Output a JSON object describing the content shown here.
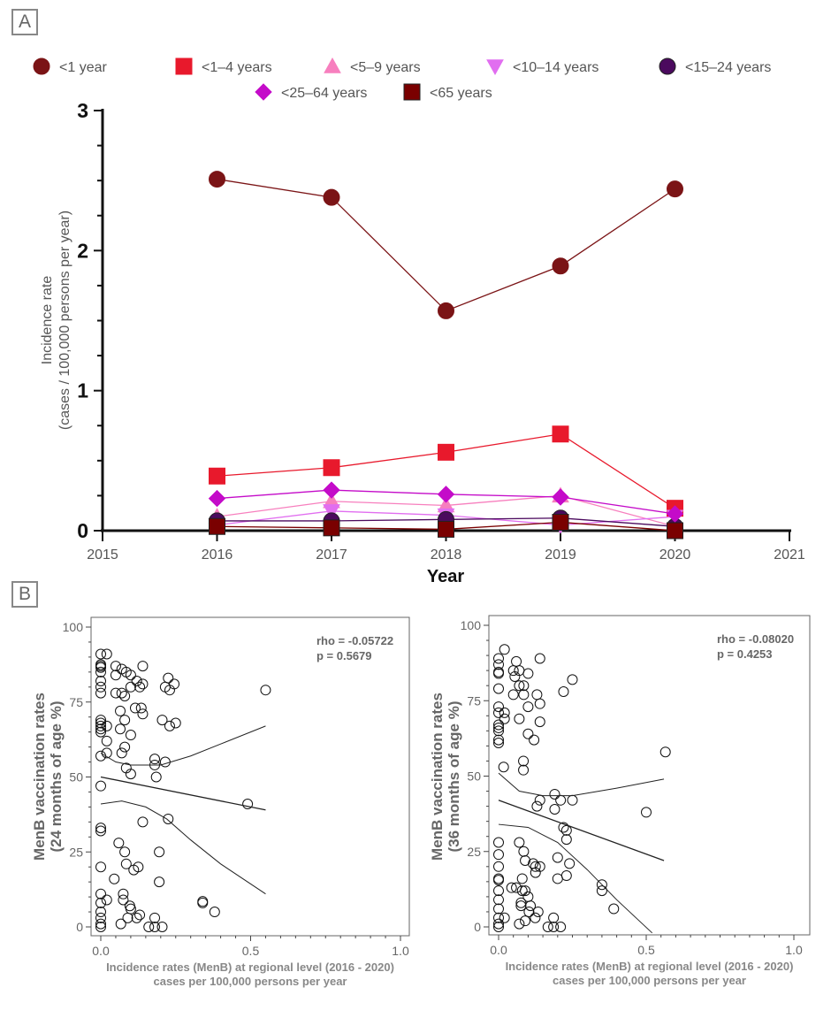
{
  "panels": {
    "a_label": "A",
    "b_label": "B"
  },
  "chart_data": [
    {
      "type": "line",
      "xlabel": "Year",
      "ylabel": [
        "Incidence rate",
        "(cases / 100,000 persons per year)"
      ],
      "xlim": [
        2015,
        2021
      ],
      "ylim": [
        0,
        3
      ],
      "x_ticks": [
        "2015",
        "2016",
        "2017",
        "2018",
        "2019",
        "2020",
        "2021"
      ],
      "y_ticks": [
        "0",
        "1",
        "2",
        "3"
      ],
      "legend_position": "top",
      "x": [
        2016,
        2017,
        2018,
        2019,
        2020
      ],
      "series": [
        {
          "name": "<1 year",
          "marker": "circle",
          "color": "#7b1416",
          "values": [
            2.51,
            2.38,
            1.57,
            1.89,
            2.44
          ]
        },
        {
          "name": "<1–4 years",
          "marker": "square",
          "color": "#e8192c",
          "values": [
            0.39,
            0.45,
            0.56,
            0.69,
            0.16
          ]
        },
        {
          "name": "<5–9 years",
          "marker": "triangle-up",
          "color": "#f77fbe",
          "values": [
            0.1,
            0.21,
            0.18,
            0.25,
            0.03
          ]
        },
        {
          "name": "<10–14 years",
          "marker": "triangle-down",
          "color": "#e16ef0",
          "values": [
            0.04,
            0.14,
            0.11,
            0.04,
            0.1
          ]
        },
        {
          "name": "<15–24 years",
          "marker": "circle",
          "color": "#4b0a5e",
          "values": [
            0.07,
            0.07,
            0.08,
            0.09,
            0.03
          ]
        },
        {
          "name": "<25–64 years",
          "marker": "diamond",
          "color": "#c40bc9",
          "values": [
            0.23,
            0.29,
            0.26,
            0.24,
            0.12
          ]
        },
        {
          "name": "<65 years",
          "marker": "square",
          "color": "#7a0000",
          "values": [
            0.03,
            0.02,
            0.01,
            0.06,
            0.0
          ]
        }
      ]
    },
    {
      "type": "scatter",
      "xlabel": [
        "Incidence rates (MenB) at regional level (2016 - 2020)",
        "cases per 100,000 persons per year"
      ],
      "ylabel": [
        "MenB vaccination rates",
        "(24 months of age %)"
      ],
      "xlim": [
        0,
        1.0
      ],
      "ylim": [
        0,
        100
      ],
      "x_ticks": [
        "0.0",
        "0.5",
        "1.0"
      ],
      "y_ticks": [
        "0",
        "25",
        "50",
        "75",
        "100"
      ],
      "annotation": [
        "rho = -0.05722",
        "p = 0.5679"
      ],
      "points": [
        [
          0,
          91
        ],
        [
          0.02,
          91
        ],
        [
          0,
          87
        ],
        [
          0,
          87.5
        ],
        [
          0,
          86.5
        ],
        [
          0,
          85
        ],
        [
          0,
          82
        ],
        [
          0,
          80
        ],
        [
          0,
          78
        ],
        [
          0.05,
          87
        ],
        [
          0.07,
          86
        ],
        [
          0.05,
          84
        ],
        [
          0.085,
          85
        ],
        [
          0.1,
          84
        ],
        [
          0.14,
          87
        ],
        [
          0.12,
          82
        ],
        [
          0.14,
          81
        ],
        [
          0.13,
          80
        ],
        [
          0.1,
          80
        ],
        [
          0.05,
          78
        ],
        [
          0.07,
          78
        ],
        [
          0.08,
          77
        ],
        [
          0.115,
          73
        ],
        [
          0.135,
          73
        ],
        [
          0.14,
          71
        ],
        [
          0.065,
          72
        ],
        [
          0.08,
          69
        ],
        [
          0.065,
          66
        ],
        [
          0.1,
          64
        ],
        [
          0.08,
          60
        ],
        [
          0.07,
          58
        ],
        [
          0,
          69
        ],
        [
          0,
          68
        ],
        [
          0,
          67
        ],
        [
          0,
          66
        ],
        [
          0,
          65
        ],
        [
          0.02,
          67
        ],
        [
          0.02,
          62
        ],
        [
          0.02,
          58
        ],
        [
          0,
          57
        ],
        [
          0.225,
          83
        ],
        [
          0.215,
          80
        ],
        [
          0.23,
          79
        ],
        [
          0.245,
          81
        ],
        [
          0.205,
          69
        ],
        [
          0.25,
          68
        ],
        [
          0.23,
          67
        ],
        [
          0.085,
          53
        ],
        [
          0.1,
          51
        ],
        [
          0.18,
          56
        ],
        [
          0.18,
          54
        ],
        [
          0.215,
          55
        ],
        [
          0.185,
          50
        ],
        [
          0.55,
          79
        ],
        [
          0.49,
          41
        ],
        [
          0,
          47
        ],
        [
          0,
          32
        ],
        [
          0,
          33
        ],
        [
          0.225,
          36
        ],
        [
          0.14,
          35
        ],
        [
          0.06,
          28
        ],
        [
          0.08,
          25
        ],
        [
          0.085,
          21
        ],
        [
          0.125,
          20
        ],
        [
          0.11,
          19
        ],
        [
          0.195,
          25
        ],
        [
          0.195,
          15
        ],
        [
          0,
          20
        ],
        [
          0.045,
          16
        ],
        [
          0.075,
          11
        ],
        [
          0.075,
          9
        ],
        [
          0.02,
          9
        ],
        [
          0,
          11
        ],
        [
          0,
          8
        ],
        [
          0.097,
          7
        ],
        [
          0.1,
          6
        ],
        [
          0.09,
          3
        ],
        [
          0.12,
          3
        ],
        [
          0.13,
          4
        ],
        [
          0.067,
          1
        ],
        [
          0,
          5
        ],
        [
          0,
          3
        ],
        [
          0,
          1
        ],
        [
          0,
          0
        ],
        [
          0.16,
          0
        ],
        [
          0.18,
          0
        ],
        [
          0.205,
          0
        ],
        [
          0.18,
          3
        ],
        [
          0.34,
          8
        ],
        [
          0.34,
          8.5
        ],
        [
          0.38,
          5
        ]
      ],
      "fit": [
        [
          0,
          50
        ],
        [
          0.55,
          39
        ]
      ],
      "ci_upper": [
        [
          0,
          58
        ],
        [
          0.05,
          55
        ],
        [
          0.1,
          54
        ],
        [
          0.2,
          54
        ],
        [
          0.3,
          57
        ],
        [
          0.4,
          61
        ],
        [
          0.55,
          67
        ]
      ],
      "ci_lower": [
        [
          0,
          41
        ],
        [
          0.07,
          42
        ],
        [
          0.15,
          40
        ],
        [
          0.22,
          36
        ],
        [
          0.3,
          29
        ],
        [
          0.4,
          21
        ],
        [
          0.55,
          11
        ]
      ]
    },
    {
      "type": "scatter",
      "xlabel": [
        "Incidence rates (MenB) at regional level (2016 - 2020)",
        "cases per 100,000 persons per year"
      ],
      "ylabel": [
        "MenB vaccination rates",
        "(36 months of age %)"
      ],
      "xlim": [
        0,
        1.0
      ],
      "ylim": [
        0,
        100
      ],
      "x_ticks": [
        "0.0",
        "0.5",
        "1.0"
      ],
      "y_ticks": [
        "0",
        "25",
        "50",
        "75",
        "100"
      ],
      "annotation": [
        "rho = -0.08020",
        "p = 0.4253"
      ],
      "points": [
        [
          0,
          89
        ],
        [
          0.02,
          92
        ],
        [
          0,
          87
        ],
        [
          0,
          84
        ],
        [
          0,
          84.5
        ],
        [
          0,
          79
        ],
        [
          0,
          73
        ],
        [
          0,
          71
        ],
        [
          0,
          67
        ],
        [
          0,
          66
        ],
        [
          0,
          65
        ],
        [
          0,
          62
        ],
        [
          0,
          61
        ],
        [
          0.02,
          71
        ],
        [
          0.02,
          69
        ],
        [
          0.017,
          53
        ],
        [
          0.06,
          88
        ],
        [
          0.05,
          85
        ],
        [
          0.07,
          85
        ],
        [
          0.055,
          83
        ],
        [
          0.07,
          80
        ],
        [
          0.085,
          80
        ],
        [
          0.05,
          77
        ],
        [
          0.085,
          77
        ],
        [
          0.1,
          84
        ],
        [
          0.14,
          89
        ],
        [
          0.13,
          77
        ],
        [
          0.14,
          74
        ],
        [
          0.1,
          73
        ],
        [
          0.07,
          69
        ],
        [
          0.14,
          68
        ],
        [
          0.1,
          64
        ],
        [
          0.12,
          62
        ],
        [
          0.084,
          55
        ],
        [
          0.084,
          52
        ],
        [
          0.22,
          78
        ],
        [
          0.25,
          82
        ],
        [
          0.565,
          58
        ],
        [
          0.5,
          38
        ],
        [
          0.19,
          44
        ],
        [
          0.21,
          42
        ],
        [
          0.25,
          42
        ],
        [
          0.14,
          42
        ],
        [
          0.13,
          40
        ],
        [
          0.19,
          39
        ],
        [
          0.22,
          33
        ],
        [
          0.23,
          32
        ],
        [
          0.23,
          29
        ],
        [
          0.2,
          23
        ],
        [
          0.24,
          21
        ],
        [
          0.2,
          16
        ],
        [
          0.23,
          17
        ],
        [
          0,
          28
        ],
        [
          0,
          24
        ],
        [
          0,
          20
        ],
        [
          0,
          16
        ],
        [
          0,
          15.5
        ],
        [
          0,
          12
        ],
        [
          0,
          9
        ],
        [
          0,
          6
        ],
        [
          0,
          3
        ],
        [
          0,
          1
        ],
        [
          0,
          0
        ],
        [
          0.02,
          3
        ],
        [
          0.07,
          28
        ],
        [
          0.085,
          25
        ],
        [
          0.09,
          22
        ],
        [
          0.117,
          21
        ],
        [
          0.125,
          20
        ],
        [
          0.14,
          20
        ],
        [
          0.125,
          18
        ],
        [
          0.044,
          13
        ],
        [
          0.06,
          13
        ],
        [
          0.08,
          16
        ],
        [
          0.08,
          12
        ],
        [
          0.09,
          12
        ],
        [
          0.1,
          10
        ],
        [
          0.076,
          8
        ],
        [
          0.076,
          7
        ],
        [
          0.108,
          7
        ],
        [
          0.103,
          5
        ],
        [
          0.134,
          5
        ],
        [
          0.124,
          3
        ],
        [
          0.09,
          2
        ],
        [
          0.07,
          1
        ],
        [
          0.167,
          0
        ],
        [
          0.186,
          0
        ],
        [
          0.21,
          0
        ],
        [
          0.186,
          3
        ],
        [
          0.35,
          14
        ],
        [
          0.35,
          12
        ],
        [
          0.39,
          6
        ]
      ],
      "fit": [
        [
          0,
          42
        ],
        [
          0.56,
          22
        ]
      ],
      "ci_upper": [
        [
          0,
          51
        ],
        [
          0.07,
          45
        ],
        [
          0.15,
          43.5
        ],
        [
          0.25,
          43.5
        ],
        [
          0.4,
          46
        ],
        [
          0.56,
          49
        ]
      ],
      "ci_lower": [
        [
          0,
          34
        ],
        [
          0.1,
          33
        ],
        [
          0.2,
          28
        ],
        [
          0.3,
          19
        ],
        [
          0.4,
          9
        ],
        [
          0.52,
          -2
        ]
      ]
    }
  ]
}
